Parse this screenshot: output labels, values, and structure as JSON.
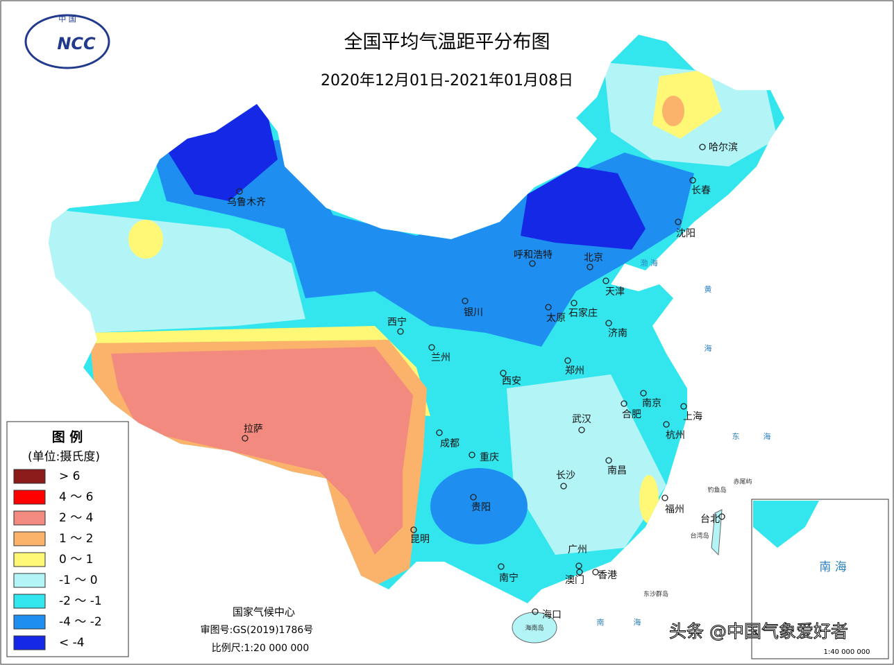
{
  "header": {
    "title": "全国平均气温距平分布图",
    "subtitle": "2020年12月01日-2021年01月08日"
  },
  "logo": {
    "top": "中 国",
    "text": "NCC"
  },
  "legend": {
    "title": "图 例",
    "unit": "(单位:摄氏度)",
    "items": [
      {
        "label": "> 6",
        "color": "#8b1a1a"
      },
      {
        "label": "4 ～ 6",
        "color": "#ff0000"
      },
      {
        "label": "2 ～ 4",
        "color": "#f28a80"
      },
      {
        "label": "1 ～ 2",
        "color": "#fbb36b"
      },
      {
        "label": "0 ～ 1",
        "color": "#fff776"
      },
      {
        "label": "-1 ～ 0",
        "color": "#b3f5f7"
      },
      {
        "label": "-2 ～ -1",
        "color": "#33e6ee"
      },
      {
        "label": "-4 ～ -2",
        "color": "#1e8ff0"
      },
      {
        "label": "< -4",
        "color": "#1428e6"
      }
    ]
  },
  "cities": [
    "乌鲁木齐",
    "呼和浩特",
    "北京",
    "哈尔滨",
    "长春",
    "沈阳",
    "天津",
    "石家庄",
    "太原",
    "银川",
    "西宁",
    "兰州",
    "济南",
    "郑州",
    "西安",
    "南京",
    "合肥",
    "上海",
    "武汉",
    "杭州",
    "成都",
    "重庆",
    "拉萨",
    "南昌",
    "长沙",
    "贵阳",
    "福州",
    "台北",
    "昆明",
    "广州",
    "南宁",
    "澳门",
    "香港",
    "海口"
  ],
  "seas": [
    "渤 海",
    "黄",
    "海",
    "东",
    "海",
    "南",
    "海"
  ],
  "islands": [
    "钓鱼岛",
    "赤尾屿",
    "台湾岛",
    "东沙群岛",
    "海南岛"
  ],
  "footer": {
    "org": "国家气候中心",
    "approval": "审图号:GS(2019)1786号",
    "scale": "比例尺:1:20 000 000"
  },
  "inset": {
    "title": "南 海",
    "scale": "1:40 000 000"
  },
  "watermark": "头条 @中国气象爱好者"
}
